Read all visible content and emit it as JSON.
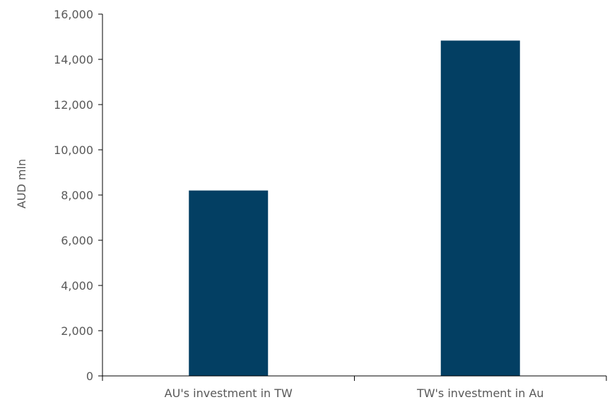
{
  "chart_data": {
    "type": "bar",
    "categories": [
      "AU's investment in TW",
      "TW's investment in Au"
    ],
    "values": [
      8200,
      14830
    ],
    "title": "",
    "xlabel": "",
    "ylabel": "AUD mln",
    "ylim": [
      0,
      16000
    ],
    "yticks": [
      0,
      2000,
      4000,
      6000,
      8000,
      10000,
      12000,
      14000,
      16000
    ],
    "ytick_labels": [
      "0",
      "2,000",
      "4,000",
      "6,000",
      "8,000",
      "10,000",
      "12,000",
      "14,000",
      "16,000"
    ],
    "grid": false,
    "legend": "none",
    "bar_color": "#033f63",
    "axis_color": "#000000",
    "text_color": "#595959"
  }
}
